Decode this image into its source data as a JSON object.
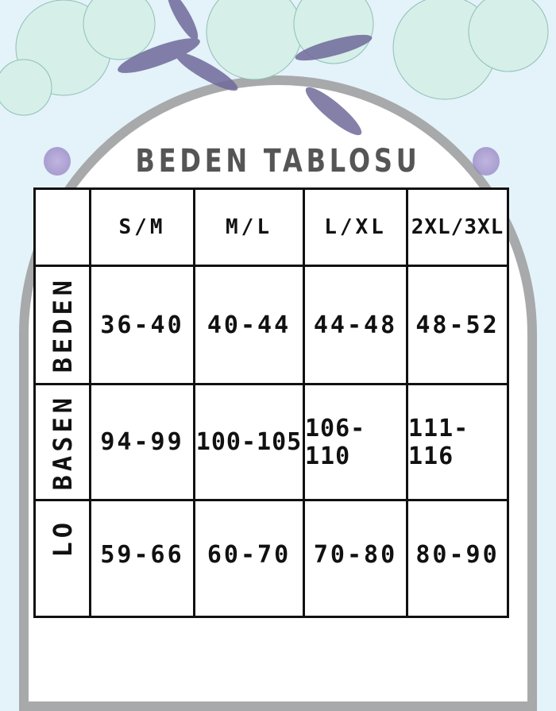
{
  "title": "BEDEN TABLOSU",
  "table": {
    "headers": [
      "S/M",
      "M/L",
      "L/XL",
      "2XL/3XL"
    ],
    "rows": [
      {
        "label": "BEDEN",
        "values": [
          "36-40",
          "40-44",
          "44-48",
          "48-52"
        ]
      },
      {
        "label": "BASEN",
        "values": [
          "94-99",
          "100-105",
          "106-110",
          "111-116"
        ]
      },
      {
        "label": "LO",
        "values": [
          "59-66",
          "60-70",
          "70-80",
          "80-90"
        ]
      }
    ]
  },
  "colors": {
    "background": "#e4f2f9",
    "frame": "#a7a9ab",
    "title": "#555555",
    "flowers": "#cfe9e4",
    "leaves": "#6f6a9a"
  }
}
